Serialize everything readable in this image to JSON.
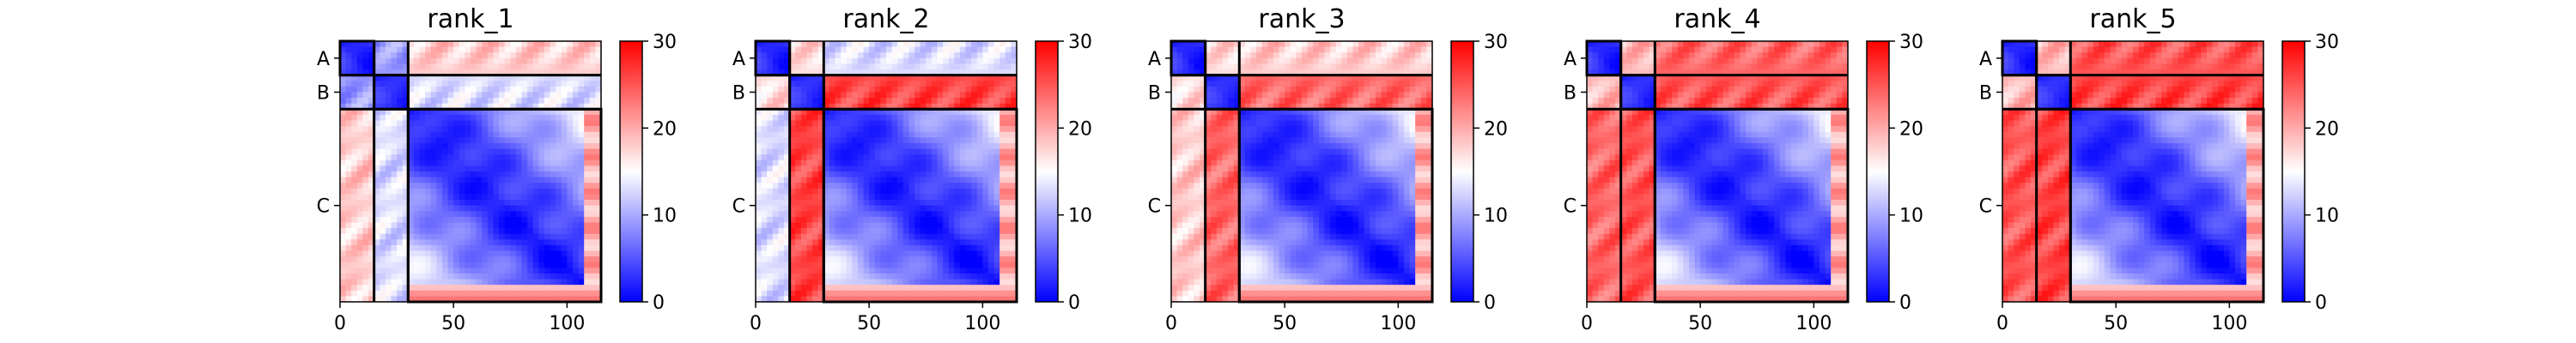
{
  "chart_data": [
    {
      "type": "heatmap",
      "title": "rank_1",
      "colorbar_ticks": [
        "0",
        "10",
        "20",
        "30"
      ],
      "colorbar_range": [
        0,
        30
      ],
      "colormap": [
        "#0000ff",
        "#ffffff",
        "#ff0000"
      ],
      "x_ticks": [
        "0",
        "50",
        "100"
      ],
      "x_range": [
        0,
        115
      ],
      "chains": [
        {
          "label": "A",
          "start": 0,
          "end": 15
        },
        {
          "label": "B",
          "start": 15,
          "end": 30
        },
        {
          "label": "C",
          "start": 30,
          "end": 115
        }
      ],
      "inter_chain_level": {
        "AB": 9,
        "AC": 18,
        "BC": 13
      }
    },
    {
      "type": "heatmap",
      "title": "rank_2",
      "colorbar_ticks": [
        "0",
        "10",
        "20",
        "30"
      ],
      "colorbar_range": [
        0,
        30
      ],
      "colormap": [
        "#0000ff",
        "#ffffff",
        "#ff0000"
      ],
      "x_ticks": [
        "0",
        "50",
        "100"
      ],
      "x_range": [
        0,
        115
      ],
      "chains": [
        {
          "label": "A",
          "start": 0,
          "end": 15
        },
        {
          "label": "B",
          "start": 15,
          "end": 30
        },
        {
          "label": "C",
          "start": 30,
          "end": 115
        }
      ],
      "inter_chain_level": {
        "AB": 17,
        "AC": 13,
        "BC": 26
      }
    },
    {
      "type": "heatmap",
      "title": "rank_3",
      "colorbar_ticks": [
        "0",
        "10",
        "20",
        "30"
      ],
      "colorbar_range": [
        0,
        30
      ],
      "colormap": [
        "#0000ff",
        "#ffffff",
        "#ff0000"
      ],
      "x_ticks": [
        "0",
        "50",
        "100"
      ],
      "x_range": [
        0,
        115
      ],
      "chains": [
        {
          "label": "A",
          "start": 0,
          "end": 15
        },
        {
          "label": "B",
          "start": 15,
          "end": 30
        },
        {
          "label": "C",
          "start": 30,
          "end": 115
        }
      ],
      "inter_chain_level": {
        "AB": 17,
        "AC": 18,
        "BC": 24
      }
    },
    {
      "type": "heatmap",
      "title": "rank_4",
      "colorbar_ticks": [
        "0",
        "10",
        "20",
        "30"
      ],
      "colorbar_range": [
        0,
        30
      ],
      "colormap": [
        "#0000ff",
        "#ffffff",
        "#ff0000"
      ],
      "x_ticks": [
        "0",
        "50",
        "100"
      ],
      "x_range": [
        0,
        115
      ],
      "chains": [
        {
          "label": "A",
          "start": 0,
          "end": 15
        },
        {
          "label": "B",
          "start": 15,
          "end": 30
        },
        {
          "label": "C",
          "start": 30,
          "end": 115
        }
      ],
      "inter_chain_level": {
        "AB": 19,
        "AC": 24,
        "BC": 25
      }
    },
    {
      "type": "heatmap",
      "title": "rank_5",
      "colorbar_ticks": [
        "0",
        "10",
        "20",
        "30"
      ],
      "colorbar_range": [
        0,
        30
      ],
      "colormap": [
        "#0000ff",
        "#ffffff",
        "#ff0000"
      ],
      "x_ticks": [
        "0",
        "50",
        "100"
      ],
      "x_range": [
        0,
        115
      ],
      "chains": [
        {
          "label": "A",
          "start": 0,
          "end": 15
        },
        {
          "label": "B",
          "start": 15,
          "end": 30
        },
        {
          "label": "C",
          "start": 30,
          "end": 115
        }
      ],
      "inter_chain_level": {
        "AB": 19,
        "AC": 25,
        "BC": 26
      }
    }
  ]
}
